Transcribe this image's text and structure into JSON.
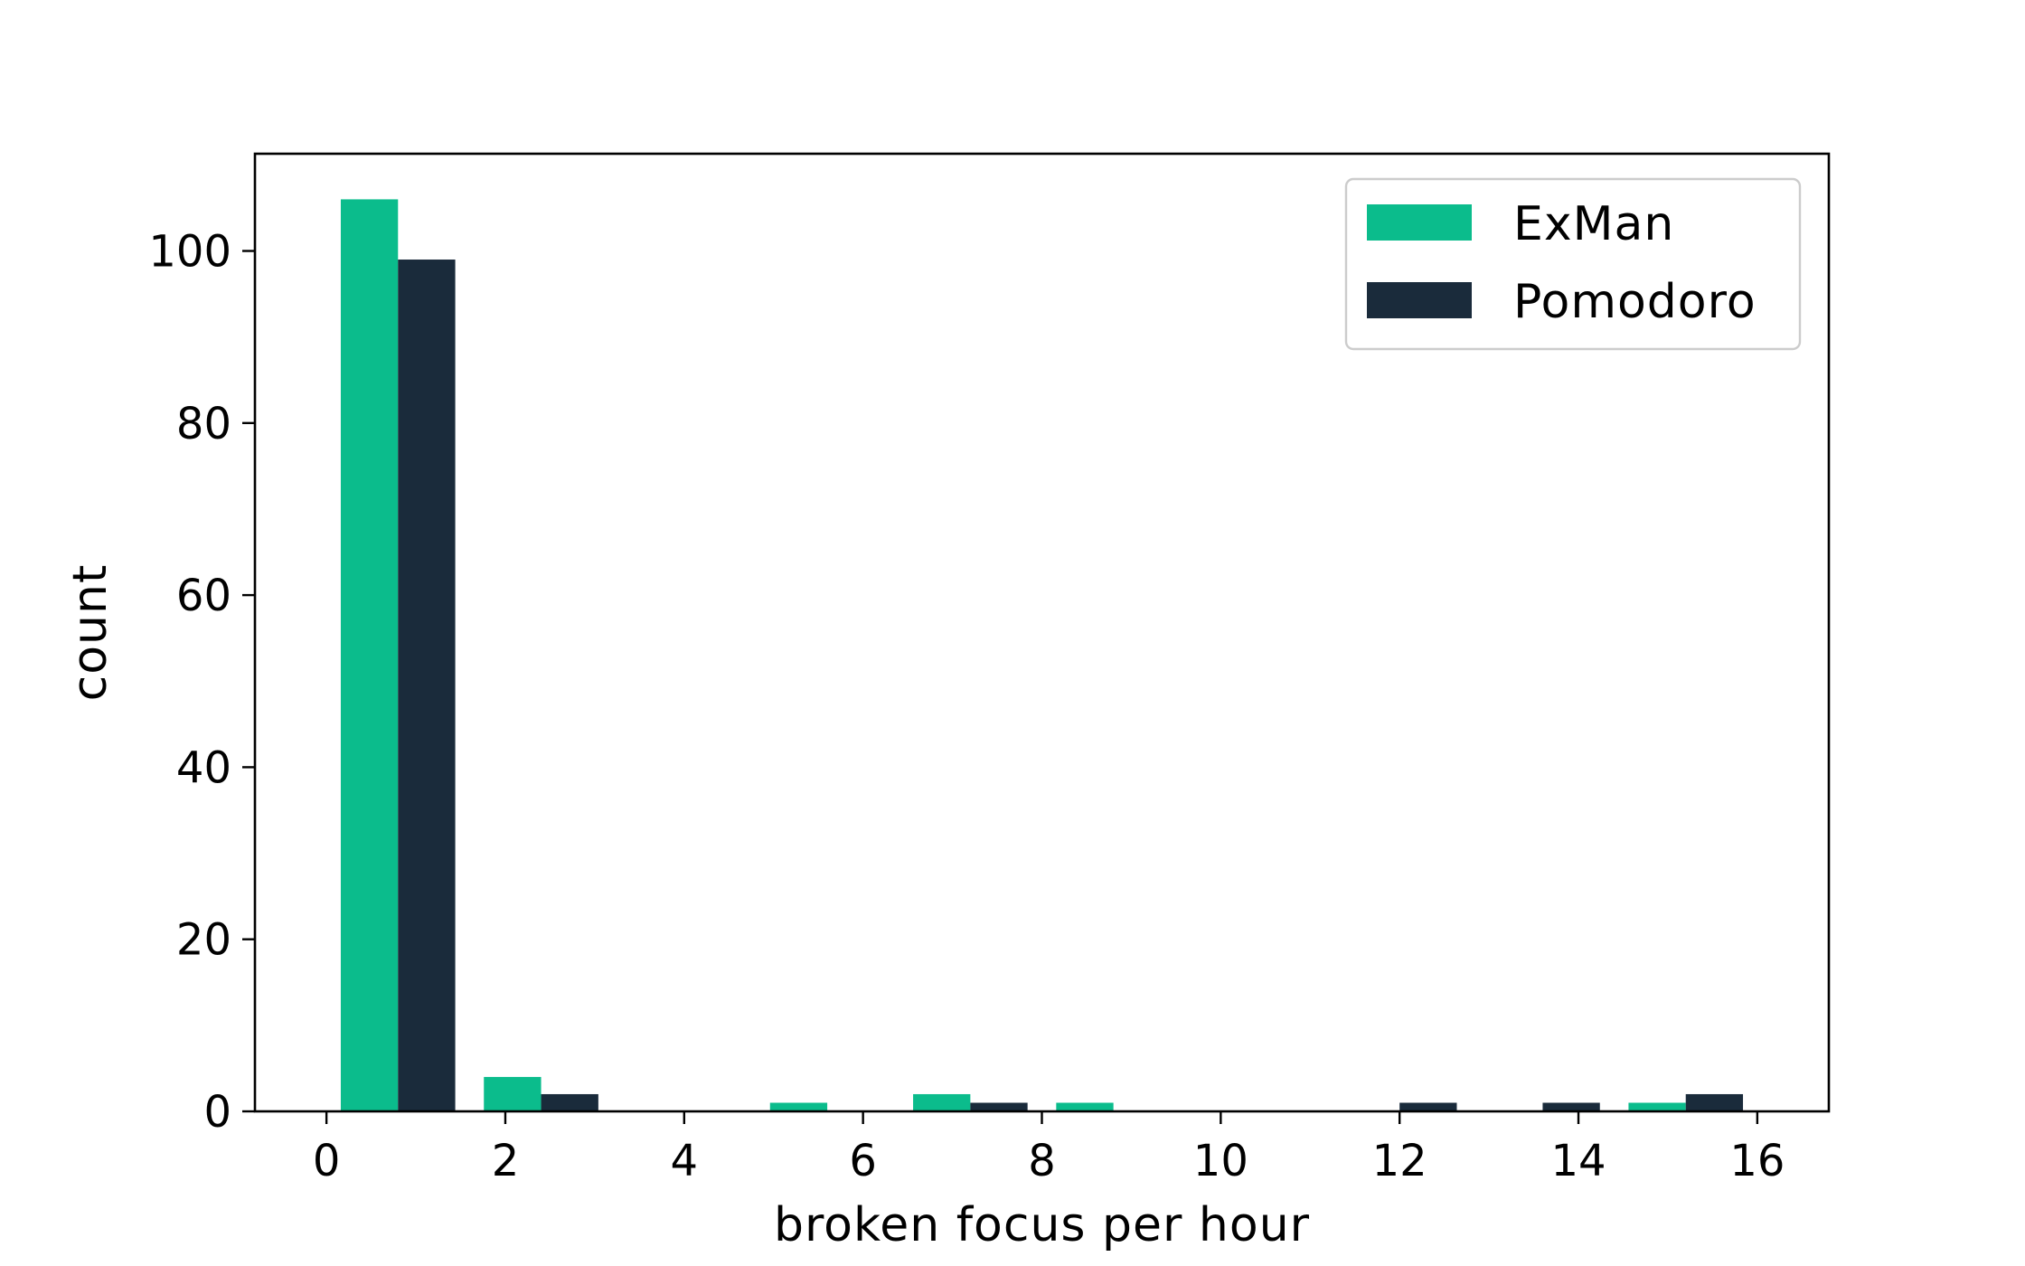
{
  "chart_data": {
    "type": "bar",
    "subtype": "histogram",
    "title": "",
    "xlabel": "broken focus per hour",
    "ylabel": "count",
    "xlim": [
      -0.8,
      16.8
    ],
    "ylim": [
      0,
      111.3
    ],
    "xticks": [
      0,
      2,
      4,
      6,
      8,
      10,
      12,
      14,
      16
    ],
    "yticks": [
      0,
      20,
      40,
      60,
      80,
      100
    ],
    "bin_edges": [
      0,
      1.6,
      3.2,
      4.8,
      6.4,
      8.0,
      9.6,
      11.2,
      12.8,
      14.4,
      16.0
    ],
    "grid": false,
    "legend_position": "top-right",
    "series": [
      {
        "name": "ExMan",
        "color": "#0bbc8c",
        "values": [
          106,
          4,
          0,
          1,
          2,
          1,
          0,
          0,
          0,
          1
        ]
      },
      {
        "name": "Pomodoro",
        "color": "#1a2b3b",
        "values": [
          99,
          2,
          0,
          0,
          1,
          0,
          0,
          1,
          1,
          2
        ]
      }
    ]
  }
}
